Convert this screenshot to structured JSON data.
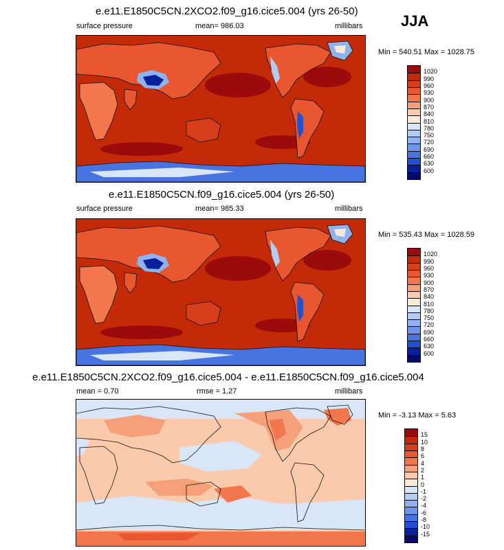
{
  "season": "JJA",
  "panels": [
    {
      "title": "e.e11.E1850C5CN.2XCO2.f09_g16.cice5.004 (yrs 26-50)",
      "left": "surface pressure",
      "center": "mean= 986.03",
      "right": "millibars",
      "minmax": "Min = 540.51 Max = 1028.75",
      "levels": [
        "1020",
        "990",
        "960",
        "930",
        "900",
        "870",
        "840",
        "810",
        "780",
        "750",
        "720",
        "690",
        "660",
        "630",
        "600"
      ],
      "colors": [
        "#9b0b0b",
        "#c22a08",
        "#d63e1c",
        "#e8572f",
        "#f2774c",
        "#f6a07a",
        "#fbc9ab",
        "#fde9d8",
        "#d8e6f7",
        "#b3cdf2",
        "#8fb3ee",
        "#6c95e8",
        "#4774e0",
        "#2250d0",
        "#0a1f9c",
        "#060a6e"
      ]
    },
    {
      "title": "e.e11.E1850C5CN.f09_g16.cice5.004 (yrs 26-50)",
      "left": "surface pressure",
      "center": "mean= 985.33",
      "right": "millibars",
      "minmax": "Min = 535.43 Max = 1028.59",
      "levels": [
        "1020",
        "990",
        "960",
        "930",
        "900",
        "870",
        "840",
        "810",
        "780",
        "750",
        "720",
        "690",
        "660",
        "630",
        "600"
      ],
      "colors": [
        "#9b0b0b",
        "#c22a08",
        "#d63e1c",
        "#e8572f",
        "#f2774c",
        "#f6a07a",
        "#fbc9ab",
        "#fde9d8",
        "#d8e6f7",
        "#b3cdf2",
        "#8fb3ee",
        "#6c95e8",
        "#4774e0",
        "#2250d0",
        "#0a1f9c",
        "#060a6e"
      ]
    },
    {
      "title": "e.e11.E1850C5CN.2XCO2.f09_g16.cice5.004 - e.e11.E1850C5CN.f09_g16.cice5.004",
      "left": "mean =   0.70",
      "center": "rmse =   1.27",
      "right": "millibars",
      "minmax": "Min =  -3.13 Max =   5.63",
      "levels": [
        "15",
        "10",
        "8",
        "6",
        "4",
        "2",
        "1",
        "0",
        "-1",
        "-2",
        "-4",
        "-6",
        "-8",
        "-10",
        "-15"
      ],
      "colors": [
        "#9b0b0b",
        "#c22a08",
        "#d63e1c",
        "#e8572f",
        "#f2774c",
        "#f6a07a",
        "#fbc9ab",
        "#fde9d8",
        "#d8e6f7",
        "#b3cdf2",
        "#8fb3ee",
        "#6c95e8",
        "#4774e0",
        "#2250d0",
        "#0a1f9c",
        "#060a6e"
      ]
    }
  ],
  "chart_data": [
    {
      "type": "heatmap",
      "title": "e.e11.E1850C5CN.2XCO2.f09_g16.cice5.004 (yrs 26-50)",
      "variable": "surface pressure",
      "units": "millibars",
      "mean": 986.03,
      "min": 540.51,
      "max": 1028.75,
      "contour_levels": [
        600,
        630,
        660,
        690,
        720,
        750,
        780,
        810,
        840,
        870,
        900,
        930,
        960,
        990,
        1020
      ]
    },
    {
      "type": "heatmap",
      "title": "e.e11.E1850C5CN.f09_g16.cice5.004 (yrs 26-50)",
      "variable": "surface pressure",
      "units": "millibars",
      "mean": 985.33,
      "min": 535.43,
      "max": 1028.59,
      "contour_levels": [
        600,
        630,
        660,
        690,
        720,
        750,
        780,
        810,
        840,
        870,
        900,
        930,
        960,
        990,
        1020
      ]
    },
    {
      "type": "heatmap",
      "title": "e.e11.E1850C5CN.2XCO2.f09_g16.cice5.004 - e.e11.E1850C5CN.f09_g16.cice5.004",
      "units": "millibars",
      "mean": 0.7,
      "rmse": 1.27,
      "min": -3.13,
      "max": 5.63,
      "contour_levels": [
        -15,
        -10,
        -8,
        -6,
        -4,
        -2,
        -1,
        0,
        1,
        2,
        4,
        6,
        8,
        10,
        15
      ]
    }
  ]
}
